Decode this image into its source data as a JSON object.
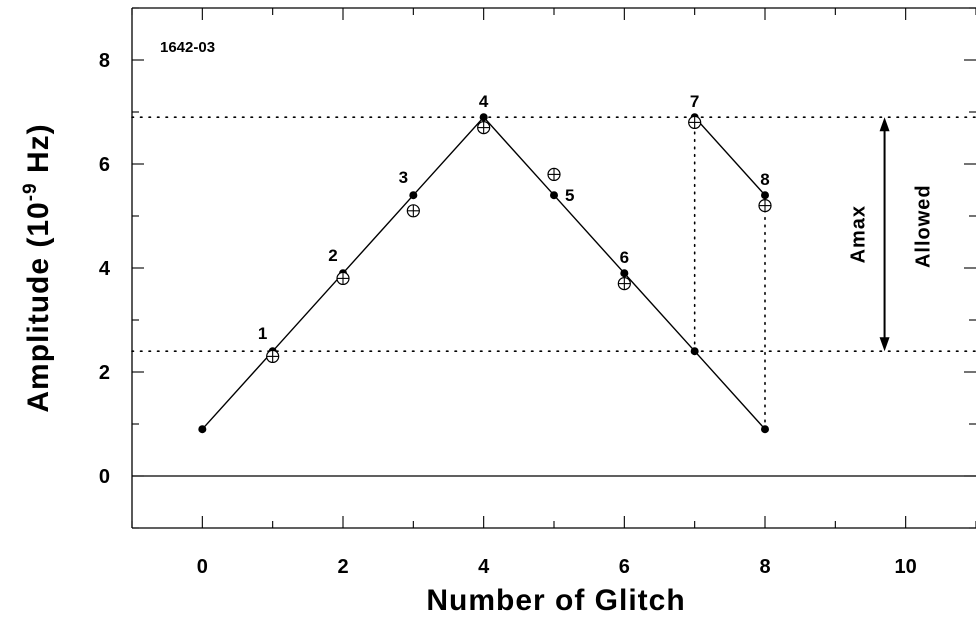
{
  "chart_data": {
    "type": "line",
    "panel_label": "1642-03",
    "xlabel": "Number of Glitch",
    "ylabel_main": "Amplitude (10",
    "ylabel_exp": "-9",
    "ylabel_unit": " Hz)",
    "xlim": [
      -1,
      11
    ],
    "ylim": [
      -1,
      9
    ],
    "x_ticks": [
      0,
      2,
      4,
      6,
      8,
      10
    ],
    "y_ticks": [
      0,
      2,
      4,
      6,
      8
    ],
    "x_tick_labels": [
      "0",
      "2",
      "4",
      "6",
      "8",
      "10"
    ],
    "y_tick_labels": [
      "0",
      "2",
      "4",
      "6",
      "8"
    ],
    "reference_lines": {
      "upper": 6.9,
      "lower": 2.4,
      "zero": 0
    },
    "series": [
      {
        "marker": "filled-circle",
        "segments": [
          [
            [
              0,
              0.9
            ],
            [
              1,
              2.4
            ],
            [
              2,
              3.9
            ],
            [
              3,
              5.4
            ],
            [
              4,
              6.9
            ],
            [
              5,
              5.4
            ],
            [
              6,
              3.9
            ],
            [
              7,
              2.4
            ],
            [
              8,
              0.9
            ]
          ],
          [
            [
              7,
              6.9
            ],
            [
              8,
              5.4
            ]
          ]
        ]
      },
      {
        "marker": "circle-plus",
        "points": [
          [
            1,
            2.3
          ],
          [
            2,
            3.8
          ],
          [
            3,
            5.1
          ],
          [
            4,
            6.7
          ],
          [
            5,
            5.8
          ],
          [
            6,
            3.7
          ],
          [
            7,
            6.8
          ],
          [
            8,
            5.2
          ]
        ]
      }
    ],
    "vertical_dotted": [
      {
        "x": 7,
        "y_from": 2.4,
        "y_to": 6.9
      },
      {
        "x": 8,
        "y_from": 0.9,
        "y_to": 5.4
      }
    ],
    "point_labels": [
      {
        "text": "1",
        "x": 1,
        "y": 2.4,
        "pos": "above-left"
      },
      {
        "text": "2",
        "x": 2,
        "y": 3.9,
        "pos": "above-left"
      },
      {
        "text": "3",
        "x": 3,
        "y": 5.4,
        "pos": "above-left"
      },
      {
        "text": "4",
        "x": 4,
        "y": 6.9,
        "pos": "above"
      },
      {
        "text": "5",
        "x": 5,
        "y": 5.4,
        "pos": "right"
      },
      {
        "text": "6",
        "x": 6,
        "y": 3.9,
        "pos": "above"
      },
      {
        "text": "7",
        "x": 7,
        "y": 6.9,
        "pos": "above"
      },
      {
        "text": "8",
        "x": 8,
        "y": 5.4,
        "pos": "above"
      }
    ],
    "annotation": {
      "arrow_x": 9.7,
      "y_from": 2.4,
      "y_to": 6.9,
      "label_amax": "Amax",
      "label_allowed": "Allowed"
    }
  }
}
